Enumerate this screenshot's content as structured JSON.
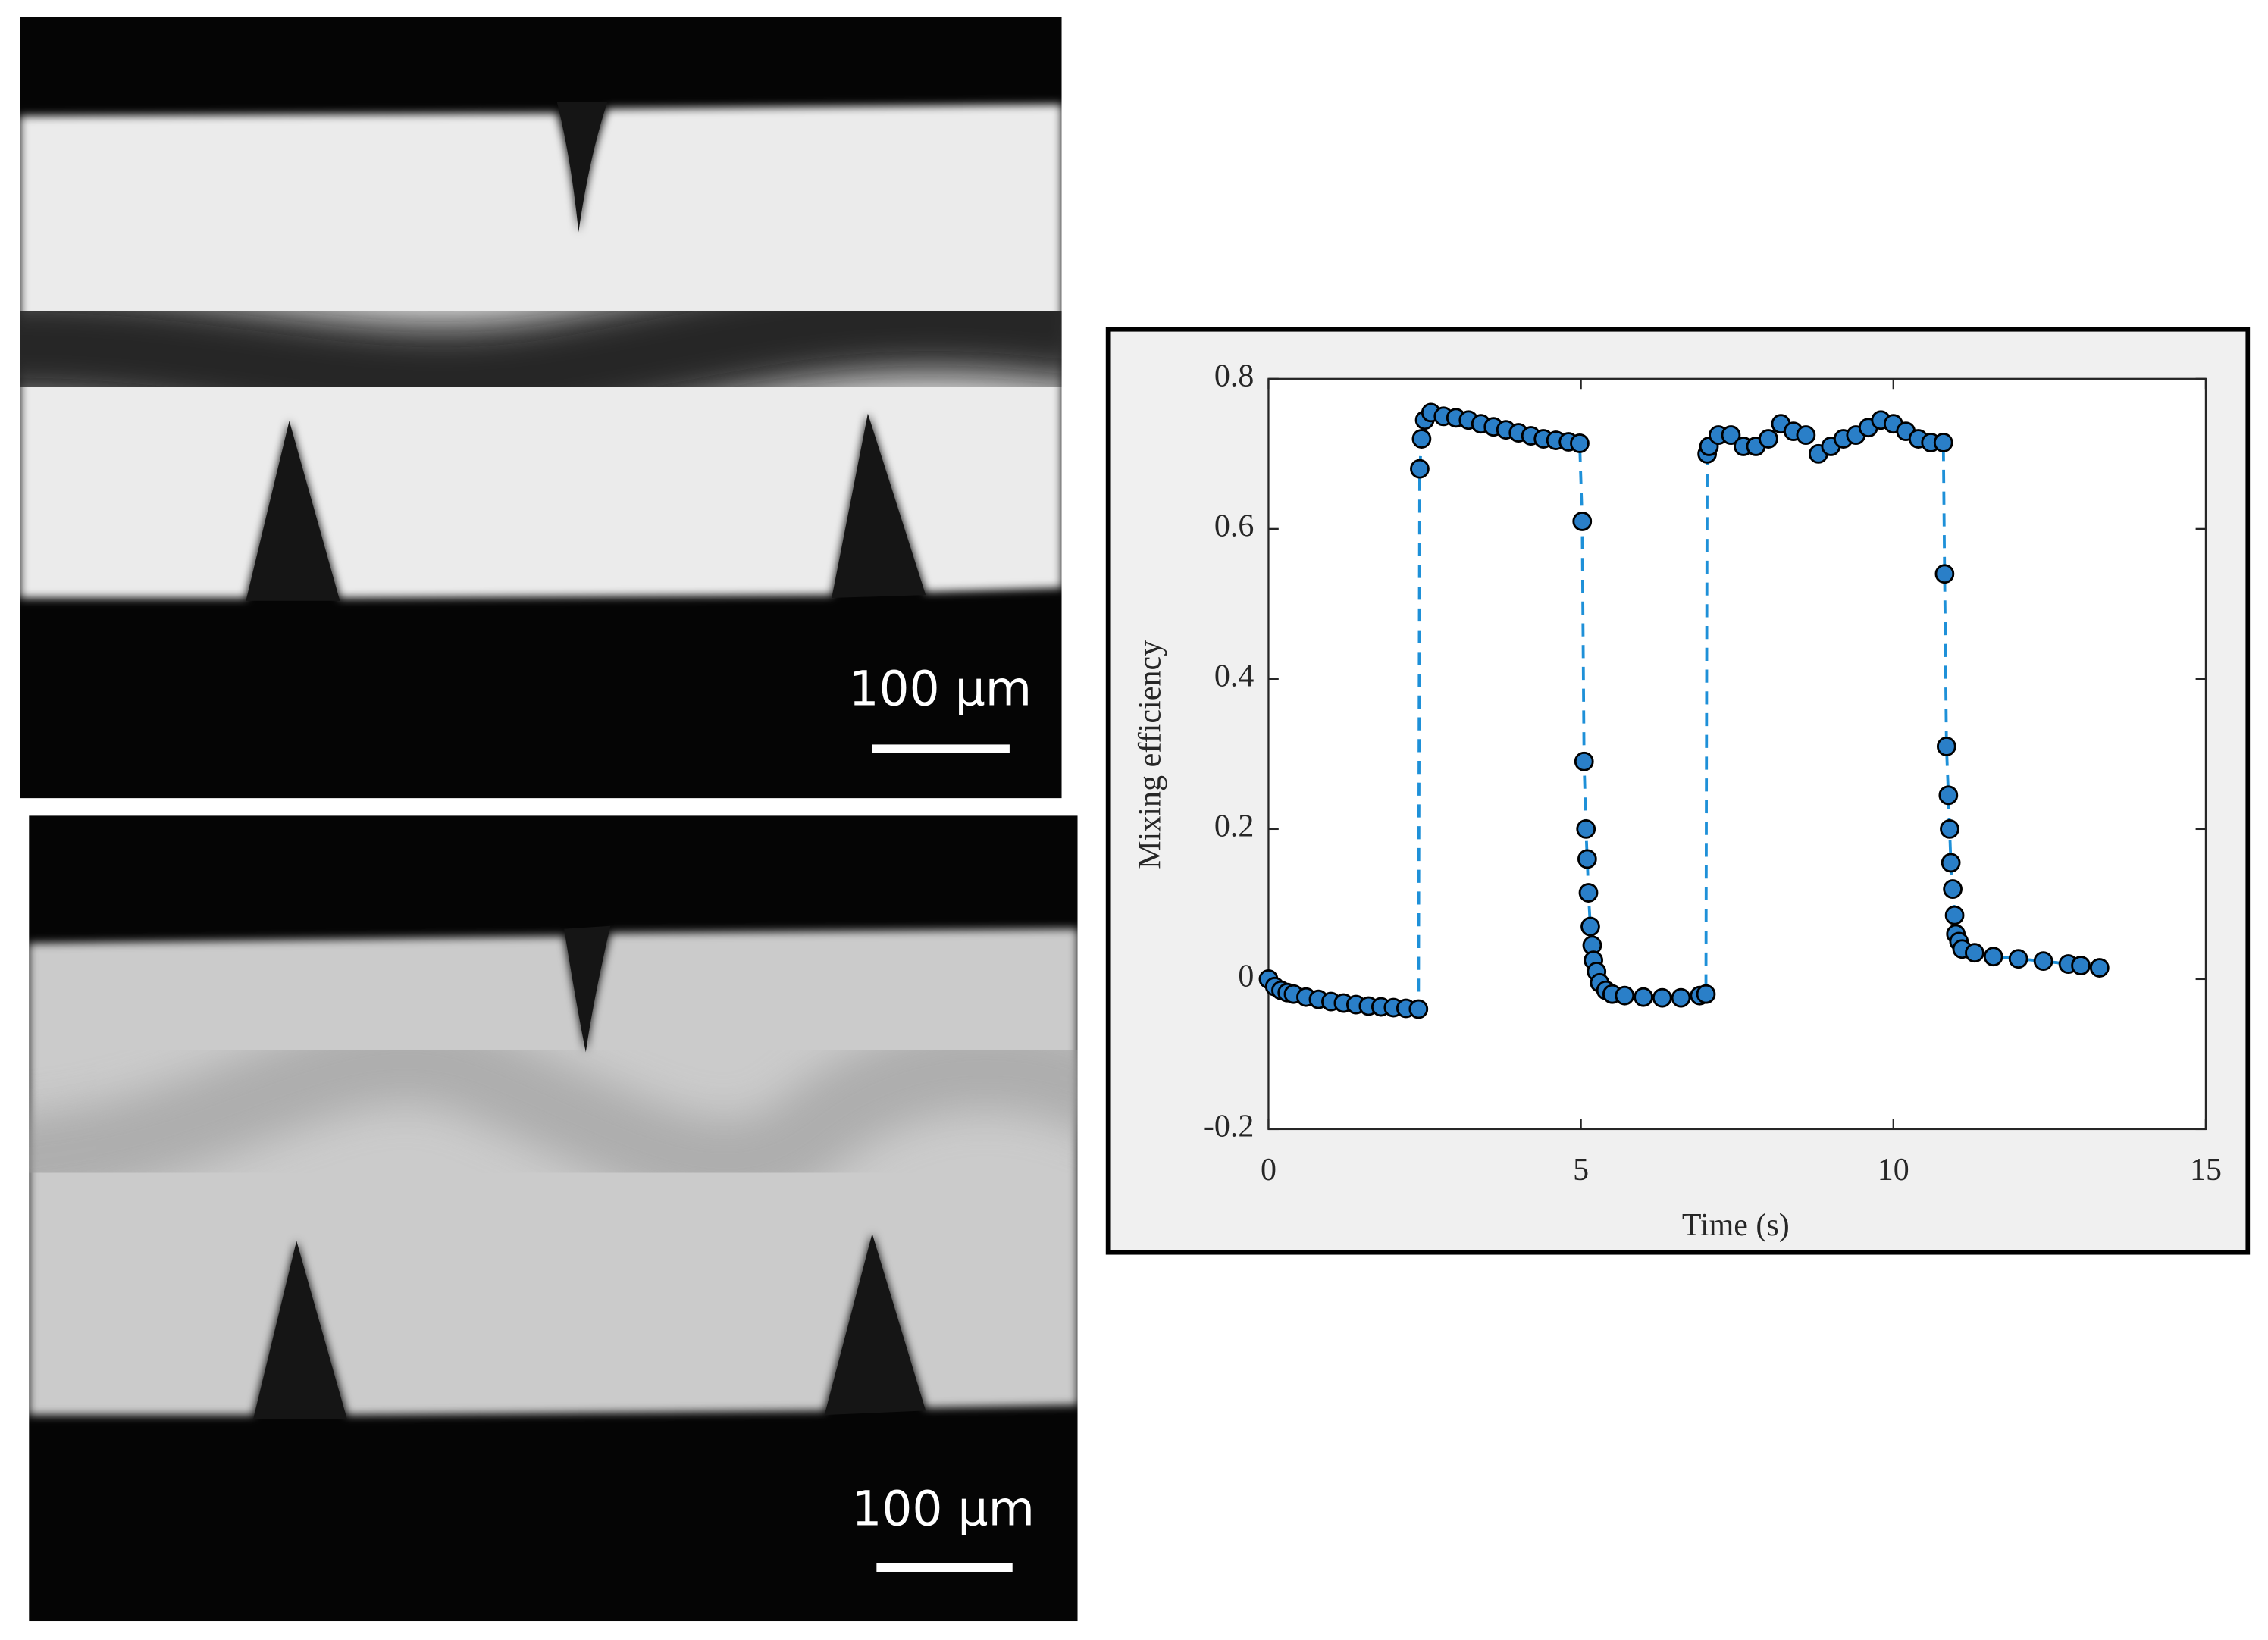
{
  "panels": [
    {
      "scale_bar": "100 μm"
    },
    {
      "scale_bar": "100 μm"
    }
  ],
  "chart_data": {
    "type": "scatter",
    "xlabel": "Time (s)",
    "ylabel": "Mixing efficiency",
    "xlim": [
      0,
      15
    ],
    "xticks": [
      0,
      5,
      10,
      15
    ],
    "ylim": [
      -0.2,
      0.8
    ],
    "yticks": [
      -0.2,
      0,
      0.2,
      0.4,
      0.6,
      0.8
    ],
    "line_style": "dashed",
    "line_color": "#1e90d8",
    "marker_edge": "#000000",
    "x": [
      0,
      0.1,
      0.2,
      0.3,
      0.4,
      0.6,
      0.8,
      1.0,
      1.2,
      1.4,
      1.6,
      1.8,
      2.0,
      2.2,
      2.4,
      2.42,
      2.45,
      2.5,
      2.6,
      2.8,
      3.0,
      3.2,
      3.4,
      3.6,
      3.8,
      4.0,
      4.2,
      4.4,
      4.6,
      4.8,
      4.98,
      5.02,
      5.05,
      5.08,
      5.1,
      5.12,
      5.15,
      5.18,
      5.2,
      5.25,
      5.3,
      5.4,
      5.5,
      5.7,
      6.0,
      6.3,
      6.6,
      6.9,
      7.0,
      7.02,
      7.05,
      7.2,
      7.4,
      7.6,
      7.8,
      8.0,
      8.2,
      8.4,
      8.6,
      8.8,
      9.0,
      9.2,
      9.4,
      9.6,
      9.8,
      10.0,
      10.2,
      10.4,
      10.6,
      10.8,
      10.82,
      10.85,
      10.88,
      10.9,
      10.92,
      10.95,
      10.98,
      11.0,
      11.05,
      11.1,
      11.3,
      11.6,
      12.0,
      12.4,
      12.8,
      13.0,
      13.3
    ],
    "series": [
      {
        "color": "#2a7fc8",
        "values": [
          0.0,
          -0.01,
          -0.015,
          -0.018,
          -0.02,
          -0.024,
          -0.027,
          -0.03,
          -0.032,
          -0.034,
          -0.036,
          -0.037,
          -0.038,
          -0.039,
          -0.04,
          0.68,
          0.72,
          0.745,
          0.755,
          0.75,
          0.748,
          0.745,
          0.74,
          0.736,
          0.732,
          0.728,
          0.724,
          0.72,
          0.718,
          0.716,
          0.714,
          0.61,
          0.29,
          0.2,
          0.16,
          0.115,
          0.07,
          0.045,
          0.025,
          0.01,
          -0.005,
          -0.015,
          -0.02,
          -0.022,
          -0.024,
          -0.025,
          -0.025,
          -0.022,
          -0.02,
          0.7,
          0.71,
          0.725,
          0.725,
          0.71,
          0.71,
          0.72,
          0.74,
          0.73,
          0.725,
          0.7,
          0.71,
          0.72,
          0.725,
          0.735,
          0.745,
          0.74,
          0.73,
          0.72,
          0.715,
          0.715,
          0.54,
          0.31,
          0.245,
          0.2,
          0.155,
          0.12,
          0.085,
          0.06,
          0.05,
          0.04,
          0.035,
          0.03,
          0.027,
          0.024,
          0.02,
          0.018,
          0.015
        ]
      }
    ]
  }
}
